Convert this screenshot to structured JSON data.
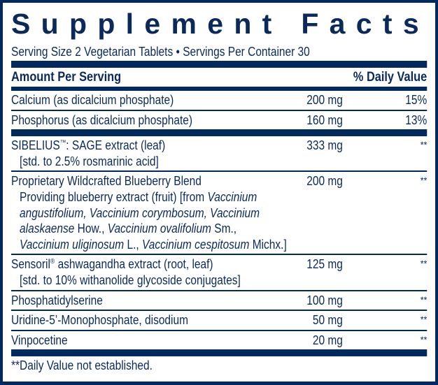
{
  "title": "Supplement Facts",
  "serving": "Serving Size 2 Vegetarian Tablets • Servings Per Container 30",
  "header": {
    "amount_per_serving": "Amount Per Serving",
    "daily_value": "% Daily Value"
  },
  "rows": [
    {
      "name": "Calcium (as dicalcium phosphate)",
      "amount": "200 mg",
      "dv": "15%"
    },
    {
      "name": "Phosphorus (as dicalcium phosphate)",
      "amount": "160 mg",
      "dv": "13%"
    },
    {
      "name": "SIBELIUS",
      "name_mark": "™",
      "name_rest": ": SAGE extract (leaf)",
      "sub": "[std. to 2.5% rosmarinic acid]",
      "amount": "333 mg",
      "dv": "**"
    },
    {
      "name": "Proprietary Wildcrafted Blueberry Blend",
      "amount": "200 mg",
      "dv": "**",
      "sub_segments": [
        "Providing blueberry extract (fruit) [from ",
        "Vaccinium",
        "angustifolium, Vaccinium corymbosum, Vaccinium",
        "alaskaense",
        " How., ",
        "Vaccinium ovalifolium",
        " Sm.,",
        "Vaccinium uliginosum",
        " L., ",
        "Vaccinium cespitosum",
        " Michx.]"
      ]
    },
    {
      "name": "Sensoril",
      "name_mark": "®",
      "name_rest": " ashwagandha extract (root, leaf)",
      "sub": "[std. to 10% withanolide glycoside conjugates]",
      "amount": "125 mg",
      "dv": "**"
    },
    {
      "name": "Phosphatidylserine",
      "amount": "100 mg",
      "dv": "**"
    },
    {
      "name": "Uridine-5’-Monophosphate, disodium",
      "amount": "50 mg",
      "dv": "**"
    },
    {
      "name": "Vinpocetine",
      "amount": "20 mg",
      "dv": "**"
    }
  ],
  "footnote": "**Daily Value not established.",
  "colors": {
    "navy": "#002a5e",
    "text": "#0b2a5c"
  }
}
